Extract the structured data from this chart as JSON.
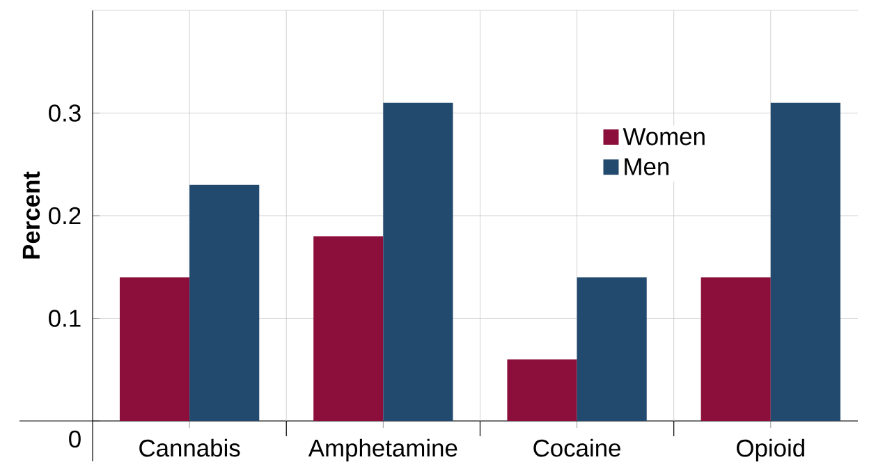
{
  "chart_data": {
    "type": "bar",
    "ylabel": "Percent",
    "categories": [
      "Cannabis",
      "Amphetamine",
      "Cocaine",
      "Opioid"
    ],
    "series": [
      {
        "name": "Women",
        "color": "#8b0f3a",
        "values": [
          0.14,
          0.18,
          0.06,
          0.14
        ]
      },
      {
        "name": "Men",
        "color": "#224a6e",
        "values": [
          0.23,
          0.31,
          0.14,
          0.31
        ]
      }
    ],
    "ylim": [
      0,
      0.4
    ],
    "yticks": [
      0,
      0.1,
      0.2,
      0.3
    ],
    "grid": true,
    "legend": "top right"
  }
}
